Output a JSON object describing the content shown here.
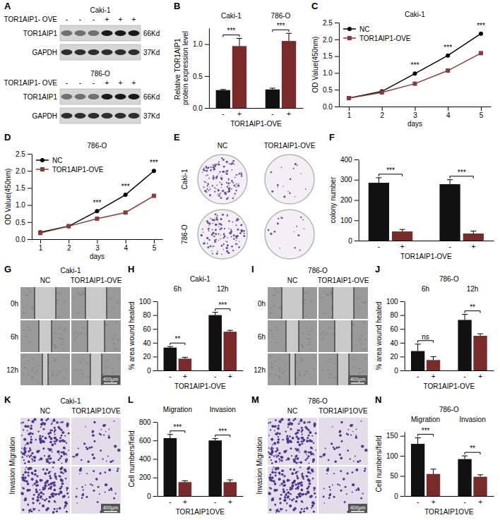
{
  "chart_data": [
    {
      "panel": "B",
      "type": "bar",
      "ylabel": "Relative TOR1AIP1 protein expression level",
      "xlabel": "TOR1AIP1-OVE",
      "categories": [
        "Caki-1",
        "786-O"
      ],
      "series": [
        {
          "name": "-",
          "color": "#111111",
          "values": [
            0.28,
            0.29
          ],
          "errors": [
            0.01,
            0.02
          ]
        },
        {
          "name": "+",
          "color": "#7b2a2a",
          "values": [
            0.97,
            1.05
          ],
          "errors": [
            0.12,
            0.12
          ]
        }
      ],
      "significance": [
        "***",
        "***"
      ],
      "ylim": [
        0,
        1.25
      ],
      "yticks": [
        {
          "value": 0,
          "label": "0.0"
        },
        0.5,
        {
          "value": 1,
          "label": "1.0"
        }
      ]
    },
    {
      "panel": "C",
      "type": "line",
      "title": "Caki-1",
      "ylabel": "OD Value(450nm)",
      "xlabel": "days",
      "x": [
        1,
        2,
        3,
        4,
        5
      ],
      "series": [
        {
          "name": "NC",
          "color": "#000000",
          "marker": "circle",
          "values": [
            0.25,
            0.45,
            0.98,
            1.52,
            2.17
          ]
        },
        {
          "name": "TOR1AIP1-OVE",
          "color": "#8b3a3a",
          "marker": "square",
          "values": [
            0.25,
            0.42,
            0.68,
            1.07,
            1.59
          ]
        }
      ],
      "annotations": [
        {
          "x": 3,
          "text": "***"
        },
        {
          "x": 4,
          "text": "***"
        },
        {
          "x": 5,
          "text": "***"
        }
      ],
      "xlim": [
        0.7,
        5.3
      ],
      "xticks": [
        1,
        2,
        3,
        4,
        5
      ],
      "ylim": [
        0,
        2.5
      ],
      "yticks": [
        {
          "value": 0,
          "label": "0.0"
        },
        0.5,
        {
          "value": 1,
          "label": "1.0"
        },
        1.5,
        {
          "value": 2,
          "label": "2.0"
        },
        2.5
      ],
      "legend": "upper left"
    },
    {
      "panel": "D",
      "type": "line",
      "title": "786-O",
      "ylabel": "OD Value(450nm)",
      "xlabel": "days",
      "x": [
        1,
        2,
        3,
        4,
        5
      ],
      "series": [
        {
          "name": "NC",
          "color": "#000000",
          "marker": "circle",
          "values": [
            0.2,
            0.38,
            0.82,
            1.3,
            2.0
          ]
        },
        {
          "name": "TOR1AIP1-OVE",
          "color": "#8b3a3a",
          "marker": "square",
          "values": [
            0.18,
            0.38,
            0.6,
            0.78,
            1.27
          ]
        }
      ],
      "annotations": [
        {
          "x": 3,
          "text": "***"
        },
        {
          "x": 4,
          "text": "***"
        },
        {
          "x": 5,
          "text": "***"
        }
      ],
      "xlim": [
        0.7,
        5.3
      ],
      "xticks": [
        1,
        2,
        3,
        4,
        5
      ],
      "ylim": [
        0,
        2.5
      ],
      "yticks": [
        {
          "value": 0,
          "label": "0.0"
        },
        0.5,
        {
          "value": 1,
          "label": "1.0"
        },
        1.5,
        {
          "value": 2,
          "label": "2.0"
        },
        2.5
      ],
      "legend": "upper left"
    },
    {
      "panel": "F",
      "type": "bar",
      "ylabel": "colony number",
      "xlabel": "TOR1AIP1-OVE",
      "categories": [
        null,
        null
      ],
      "series": [
        {
          "name": "-",
          "color": "#111111",
          "values": [
            285,
            278
          ],
          "errors": [
            25,
            22
          ]
        },
        {
          "name": "+",
          "color": "#7b2a2a",
          "values": [
            45,
            35
          ],
          "errors": [
            10,
            12
          ]
        }
      ],
      "significance": [
        "***",
        "***"
      ],
      "ylim": [
        0,
        400
      ],
      "yticks": [
        0,
        100,
        200,
        300,
        400
      ]
    },
    {
      "panel": "H",
      "type": "bar",
      "title": "Caki-1",
      "ylabel": "% area wound healed",
      "xlabel": "TOR1AIP1-OVE",
      "categories": [
        "6h",
        "12h"
      ],
      "series": [
        {
          "name": "-",
          "color": "#111111",
          "values": [
            33,
            80
          ],
          "errors": [
            1.5,
            4
          ]
        },
        {
          "name": "+",
          "color": "#7b2a2a",
          "values": [
            17,
            56
          ],
          "errors": [
            2,
            2
          ]
        }
      ],
      "significance": [
        "**",
        "***"
      ],
      "ylim": [
        0,
        100
      ],
      "yticks": [
        0,
        20,
        40,
        60,
        80,
        100
      ]
    },
    {
      "panel": "J",
      "type": "bar",
      "title": "786-O",
      "ylabel": "% area wound healed",
      "xlabel": "TOR1AIP1-OVE",
      "categories": [
        "6h",
        "12h"
      ],
      "series": [
        {
          "name": "-",
          "color": "#111111",
          "values": [
            28,
            73
          ],
          "errors": [
            10,
            8
          ]
        },
        {
          "name": "+",
          "color": "#7b2a2a",
          "values": [
            15,
            50
          ],
          "errors": [
            5,
            3
          ]
        }
      ],
      "significance": [
        "ns",
        "**"
      ],
      "ylim": [
        0,
        100
      ],
      "yticks": [
        0,
        20,
        40,
        60,
        80,
        100
      ]
    },
    {
      "panel": "L",
      "type": "bar",
      "ylabel": "Cell numbers/field",
      "xlabel": "TOR1AIP1OVE",
      "categories": [
        "Migration",
        "Invasion"
      ],
      "series": [
        {
          "name": "-",
          "color": "#111111",
          "values": [
            625,
            600
          ],
          "errors": [
            40,
            20
          ]
        },
        {
          "name": "+",
          "color": "#7b2a2a",
          "values": [
            150,
            150
          ],
          "errors": [
            15,
            25
          ]
        }
      ],
      "significance": [
        "***",
        "***"
      ],
      "ylim": [
        0,
        800
      ],
      "yticks": [
        0,
        200,
        400,
        600,
        800
      ]
    },
    {
      "panel": "N",
      "type": "bar",
      "title": "786-O",
      "ylabel": "Cell numbers/field",
      "xlabel": "TOR1AIP1OVE",
      "categories": [
        "Migration",
        "Invasion"
      ],
      "series": [
        {
          "name": "-",
          "color": "#111111",
          "values": [
            130,
            92
          ],
          "errors": [
            15,
            8
          ]
        },
        {
          "name": "+",
          "color": "#7b2a2a",
          "values": [
            55,
            48
          ],
          "errors": [
            12,
            5
          ]
        }
      ],
      "significance": [
        "***",
        "**"
      ],
      "ylim": [
        0,
        160
      ],
      "yticks": [
        0,
        50,
        100,
        150
      ]
    }
  ],
  "images": [
    {
      "panel": "A",
      "type": "western_blot",
      "blocks": [
        {
          "title": "Caki-1",
          "condition": "TOR1AIP1- OVE",
          "lanes": [
            "-",
            "-",
            "-",
            "+",
            "+",
            "+"
          ],
          "rows": [
            {
              "label": "TOR1AIP1",
              "size": "66Kd"
            },
            {
              "label": "GAPDH",
              "size": "37Kd"
            }
          ]
        },
        {
          "title": "786-O",
          "condition": "TOR1AIP1- OVE",
          "lanes": [
            "-",
            "-",
            "-",
            "+",
            "+",
            "+"
          ],
          "rows": [
            {
              "label": "TOR1AIP1",
              "size": "66Kd"
            },
            {
              "label": "GAPDH",
              "size": "37Kd"
            }
          ]
        }
      ]
    },
    {
      "panel": "E",
      "type": "colony_plates",
      "columns": [
        "NC",
        "TOR1AIP1-OVE"
      ],
      "rows": [
        "Caki-1",
        "786-O"
      ]
    },
    {
      "panel": "G",
      "type": "wound_healing",
      "title": "Caki-1",
      "columns": [
        "NC",
        "TOR1AIP1-OVE"
      ],
      "rows": [
        "0h",
        "6h",
        "12h"
      ],
      "scale_bar": "400μm"
    },
    {
      "panel": "I",
      "type": "wound_healing",
      "title": "786-O",
      "columns": [
        "NC",
        "TOR1AIP1-OVE"
      ],
      "rows": [
        "0h",
        "6h",
        "12h"
      ],
      "scale_bar": "400μm"
    },
    {
      "panel": "K",
      "type": "transwell",
      "title": "Caki-1",
      "columns": [
        "NC",
        "TOR1AIP1OVE"
      ],
      "row_label": "Invasion Migration",
      "scale_bar": "400μm"
    },
    {
      "panel": "M",
      "type": "transwell",
      "title": "786-O",
      "columns": [
        "NC",
        "TOR1AIP1OVE"
      ],
      "row_label": "Invasion Migration",
      "scale_bar": "400μm"
    }
  ]
}
